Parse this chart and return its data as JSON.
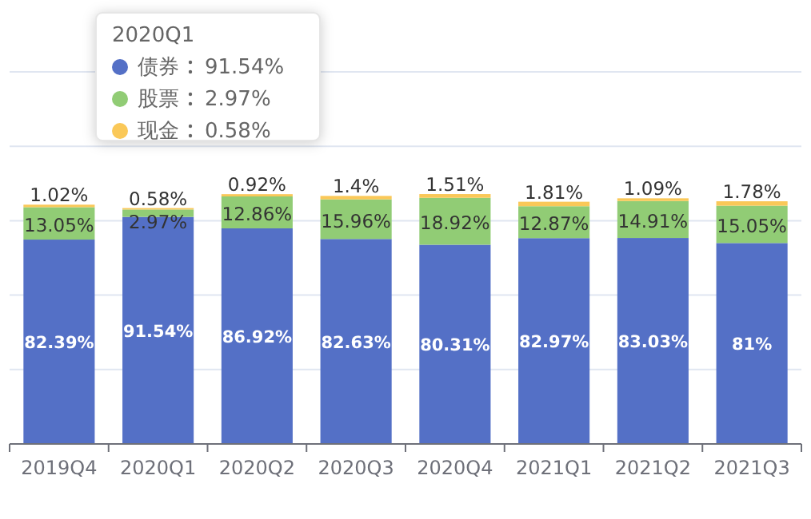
{
  "chart_data": {
    "type": "bar",
    "stacked": true,
    "categories": [
      "2019Q4",
      "2020Q1",
      "2020Q2",
      "2020Q3",
      "2020Q4",
      "2021Q1",
      "2021Q2",
      "2021Q3"
    ],
    "series": [
      {
        "name": "债券",
        "color": "#5470c6",
        "values": [
          82.39,
          91.54,
          86.92,
          82.63,
          80.31,
          82.97,
          83.03,
          81
        ],
        "value_labels": [
          "82.39%",
          "91.54%",
          "86.92%",
          "82.63%",
          "80.31%",
          "82.97%",
          "83.03%",
          "81%"
        ]
      },
      {
        "name": "股票",
        "color": "#91cc75",
        "values": [
          13.05,
          2.97,
          12.86,
          15.96,
          18.92,
          12.87,
          14.91,
          15.05
        ],
        "value_labels": [
          "13.05%",
          "2.97%",
          "12.86%",
          "15.96%",
          "18.92%",
          "12.87%",
          "14.91%",
          "15.05%"
        ]
      },
      {
        "name": "现金",
        "color": "#fac858",
        "values": [
          1.02,
          0.58,
          0.92,
          1.4,
          1.51,
          1.81,
          1.09,
          1.78
        ],
        "value_labels": [
          "1.02%",
          "0.58%",
          "0.92%",
          "1.4%",
          "1.51%",
          "1.81%",
          "1.09%",
          "1.78%"
        ]
      }
    ],
    "ylim": [
      0,
      150
    ],
    "yticks": [
      {
        "value": 0,
        "label": null
      },
      {
        "value": 30,
        "label": null
      },
      {
        "value": 60,
        "label": null
      },
      {
        "value": 90,
        "label": null
      },
      {
        "value": 120,
        "label": null
      },
      {
        "value": 150,
        "label": null
      }
    ],
    "grid": "y",
    "tick_labels": "x",
    "legend": "top left",
    "legend_title": "2020Q1"
  }
}
